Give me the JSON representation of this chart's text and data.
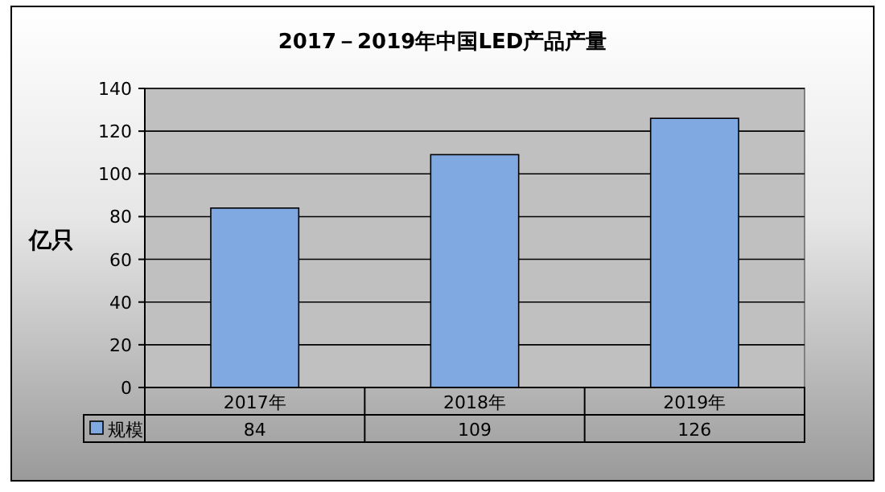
{
  "chart_data": {
    "type": "bar",
    "title": "2017－2019年中国LED产品产量",
    "ylabel": "亿只",
    "categories": [
      "2017年",
      "2018年",
      "2019年"
    ],
    "series": [
      {
        "name": "规模",
        "color": "#7fa9e0",
        "values": [
          84,
          109,
          126
        ]
      }
    ],
    "ylim": [
      0,
      140
    ],
    "yticks": [
      0,
      20,
      40,
      60,
      80,
      100,
      120,
      140
    ],
    "grid": "y",
    "legend": "bottom",
    "data_labels": true
  }
}
